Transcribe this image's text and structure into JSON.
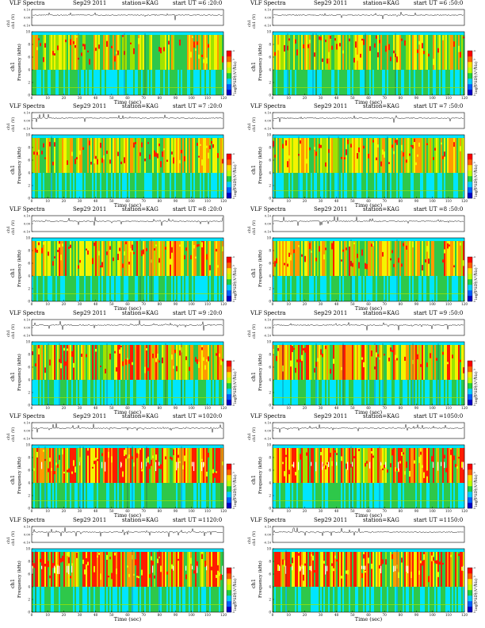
{
  "page": {
    "background": "#ffffff"
  },
  "panels": [
    {
      "title": "VLF Spectra",
      "date": "Sep29 2011",
      "station": "station=KAG",
      "start": "start  UT =6 :20:0",
      "ch": "ch1",
      "density": 0.3
    },
    {
      "title": "VLF Spectra",
      "date": "Sep29 2011",
      "station": "station=KAG",
      "start": "start  UT =6 :50:0",
      "ch": "ch1",
      "density": 0.32
    },
    {
      "title": "VLF Spectra",
      "date": "Sep29 2011",
      "station": "station=KAG",
      "start": "start  UT =7 :20:0",
      "ch": "ch1",
      "density": 0.4
    },
    {
      "title": "VLF Spectra",
      "date": "Sep29 2011",
      "station": "station=KAG",
      "start": "start  UT =7 :50:0",
      "ch": "ch1",
      "density": 0.42
    },
    {
      "title": "VLF Spectra",
      "date": "Sep29 2011",
      "station": "station=KAG",
      "start": "start  UT =8 :20:0",
      "ch": "ch1",
      "density": 0.5
    },
    {
      "title": "VLF Spectra",
      "date": "Sep29 2011",
      "station": "station=KAG",
      "start": "start  UT =8 :50:0",
      "ch": "ch1",
      "density": 0.5
    },
    {
      "title": "VLF Spectra",
      "date": "Sep29 2011",
      "station": "station=KAG",
      "start": "start  UT =9 :20:0",
      "ch": "ch1",
      "density": 0.62
    },
    {
      "title": "VLF Spectra",
      "date": "Sep29 2011",
      "station": "station=KAG",
      "start": "start  UT =9 :50:0",
      "ch": "ch1",
      "density": 0.64
    },
    {
      "title": "VLF Spectra",
      "date": "Sep29 2011",
      "station": "station=KAG",
      "start": "start  UT =1020:0",
      "ch": "ch1",
      "density": 0.78
    },
    {
      "title": "VLF Spectra",
      "date": "Sep29 2011",
      "station": "station=KAG",
      "start": "start  UT =1050:0",
      "ch": "ch1",
      "density": 0.8
    },
    {
      "title": "VLF Spectra",
      "date": "Sep29 2011",
      "station": "station=KAG",
      "start": "start  UT =1120:0",
      "ch": "ch1",
      "density": 0.88
    },
    {
      "title": "VLF Spectra",
      "date": "Sep29 2011",
      "station": "station=KAG",
      "start": "start  UT =1150:0",
      "ch": "ch1",
      "density": 0.88
    }
  ],
  "labels": {
    "trace_ylabel": "ch1 (V)",
    "freq_ylabel": "Frequency  (kHz)",
    "time_xlabel": "Time  (sec)",
    "colorbar_label": "log(PSD)(V²/Hz)"
  },
  "colors": {
    "cold": "#1e90ff",
    "cyan": "#00e5ff",
    "green": "#2ec84a",
    "lime": "#9fe300",
    "yellow": "#f4f400",
    "orange": "#ff9a00",
    "red": "#ff1c00",
    "dark": "#000000",
    "colormap": [
      "#0000c8",
      "#0060ff",
      "#00d0ff",
      "#20d040",
      "#c0ff00",
      "#ffe000",
      "#ff6000",
      "#ff0000"
    ]
  },
  "chart_data": {
    "type": "heatmap",
    "x_label": "Time  (sec)",
    "y_label": "Frequency  (kHz)",
    "xlim": [
      0,
      120
    ],
    "ylim": [
      0,
      10
    ],
    "x_ticks": [
      "0",
      "10",
      "20",
      "30",
      "40",
      "50",
      "60",
      "70",
      "80",
      "90",
      "100",
      "110",
      "120"
    ],
    "y_ticks": [
      "0",
      "2",
      "4",
      "6",
      "8",
      "10"
    ],
    "trace_y_ticks": [
      "0.10",
      "0.00",
      "-0.10"
    ],
    "trace_ylim": [
      -0.1,
      0.1
    ],
    "colorbar_ticks": [
      "-4",
      "-5",
      "-6",
      "-7",
      "-8",
      "-9"
    ],
    "emission_band_khz": [
      4,
      9.5
    ],
    "panel_start_ut": [
      "6:20:0",
      "6:50:0",
      "7:20:0",
      "7:50:0",
      "8:20:0",
      "8:50:0",
      "9:20:0",
      "9:50:0",
      "10:20:0",
      "10:50:0",
      "11:20:0",
      "11:50:0"
    ]
  }
}
